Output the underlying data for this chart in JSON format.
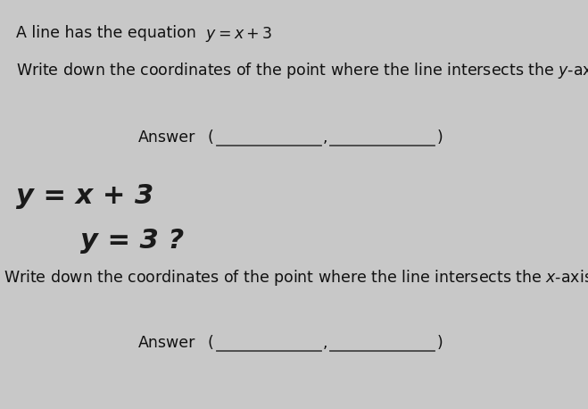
{
  "background_color": "#c8c8c8",
  "paper_color": "#e8e6e2",
  "title_text": "A line has the equation",
  "equation_text": "$y = x + 3$",
  "q1_text": "Write down the coordinates of the point where the line intersects the $y$-axis.",
  "q2_text": "Write down the coordinates of the point where the line intersects the $x$-axis.",
  "answer_label": "Answer",
  "handwritten_line1": "y = x + 3",
  "handwritten_line2": "y = 3 ?",
  "font_size_main": 12.5,
  "font_size_handwritten": 22,
  "line_color": "#444444",
  "text_color": "#111111"
}
